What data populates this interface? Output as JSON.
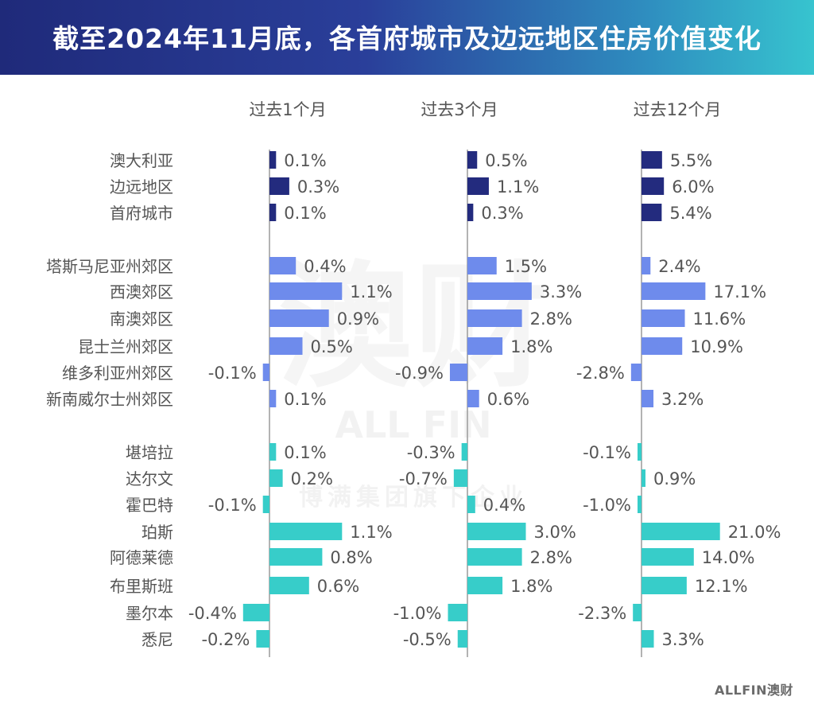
{
  "title": "截至2024年11月底，各首府城市及边远地区住房价值变化",
  "footer_logo": "ALLFIN澳财",
  "watermark": {
    "mark": "澳财",
    "brand": "ALL FIN",
    "tagline": "博满集团旗下企业"
  },
  "colors": {
    "group1": "#232b7e",
    "group2": "#6e8bec",
    "group3": "#37cdc9",
    "axis": "#9a9a9a",
    "label": "#555555"
  },
  "chart_data": {
    "type": "bar",
    "orientation": "horizontal",
    "categories": [
      "澳大利亚",
      "边远地区",
      "首府城市",
      "塔斯马尼亚州郊区",
      "西澳郊区",
      "南澳郊区",
      "昆士兰州郊区",
      "维多利亚州郊区",
      "新南威尔士州郊区",
      "堪培拉",
      "达尔文",
      "霍巴特",
      "珀斯",
      "阿德莱德",
      "布里斯班",
      "墨尔本",
      "悉尼"
    ],
    "groups": [
      0,
      0,
      0,
      1,
      1,
      1,
      1,
      1,
      1,
      2,
      2,
      2,
      2,
      2,
      2,
      2,
      2
    ],
    "series": [
      {
        "name": "过去1个月",
        "values": [
          0.1,
          0.3,
          0.1,
          0.4,
          1.1,
          0.9,
          0.5,
          -0.1,
          0.1,
          0.1,
          0.2,
          -0.1,
          1.1,
          0.8,
          0.6,
          -0.4,
          -0.2
        ],
        "labels": [
          "0.1%",
          "0.3%",
          "0.1%",
          "0.4%",
          "1.1%",
          "0.9%",
          "0.5%",
          "-0.1%",
          "0.1%",
          "0.1%",
          "0.2%",
          "-0.1%",
          "1.1%",
          "0.8%",
          "0.6%",
          "-0.4%",
          "-0.2%"
        ]
      },
      {
        "name": "过去3个月",
        "values": [
          0.5,
          1.1,
          0.3,
          1.5,
          3.3,
          2.8,
          1.8,
          -0.9,
          0.6,
          -0.3,
          -0.7,
          0.4,
          3.0,
          2.8,
          1.8,
          -1.0,
          -0.5
        ],
        "labels": [
          "0.5%",
          "1.1%",
          "0.3%",
          "1.5%",
          "3.3%",
          "2.8%",
          "1.8%",
          "-0.9%",
          "0.6%",
          "-0.3%",
          "-0.7%",
          "0.4%",
          "3.0%",
          "2.8%",
          "1.8%",
          "-1.0%",
          "-0.5%"
        ]
      },
      {
        "name": "过去12个月",
        "values": [
          5.5,
          6.0,
          5.4,
          2.4,
          17.1,
          11.6,
          10.9,
          -2.8,
          3.2,
          -0.1,
          0.9,
          -1.0,
          21.0,
          14.0,
          12.1,
          -2.3,
          3.3
        ],
        "labels": [
          "5.5%",
          "6.0%",
          "5.4%",
          "2.4%",
          "17.1%",
          "11.6%",
          "10.9%",
          "-2.8%",
          "3.2%",
          "-0.1%",
          "0.9%",
          "-1.0%",
          "21.0%",
          "14.0%",
          "12.1%",
          "-2.3%",
          "3.3%"
        ]
      }
    ]
  }
}
